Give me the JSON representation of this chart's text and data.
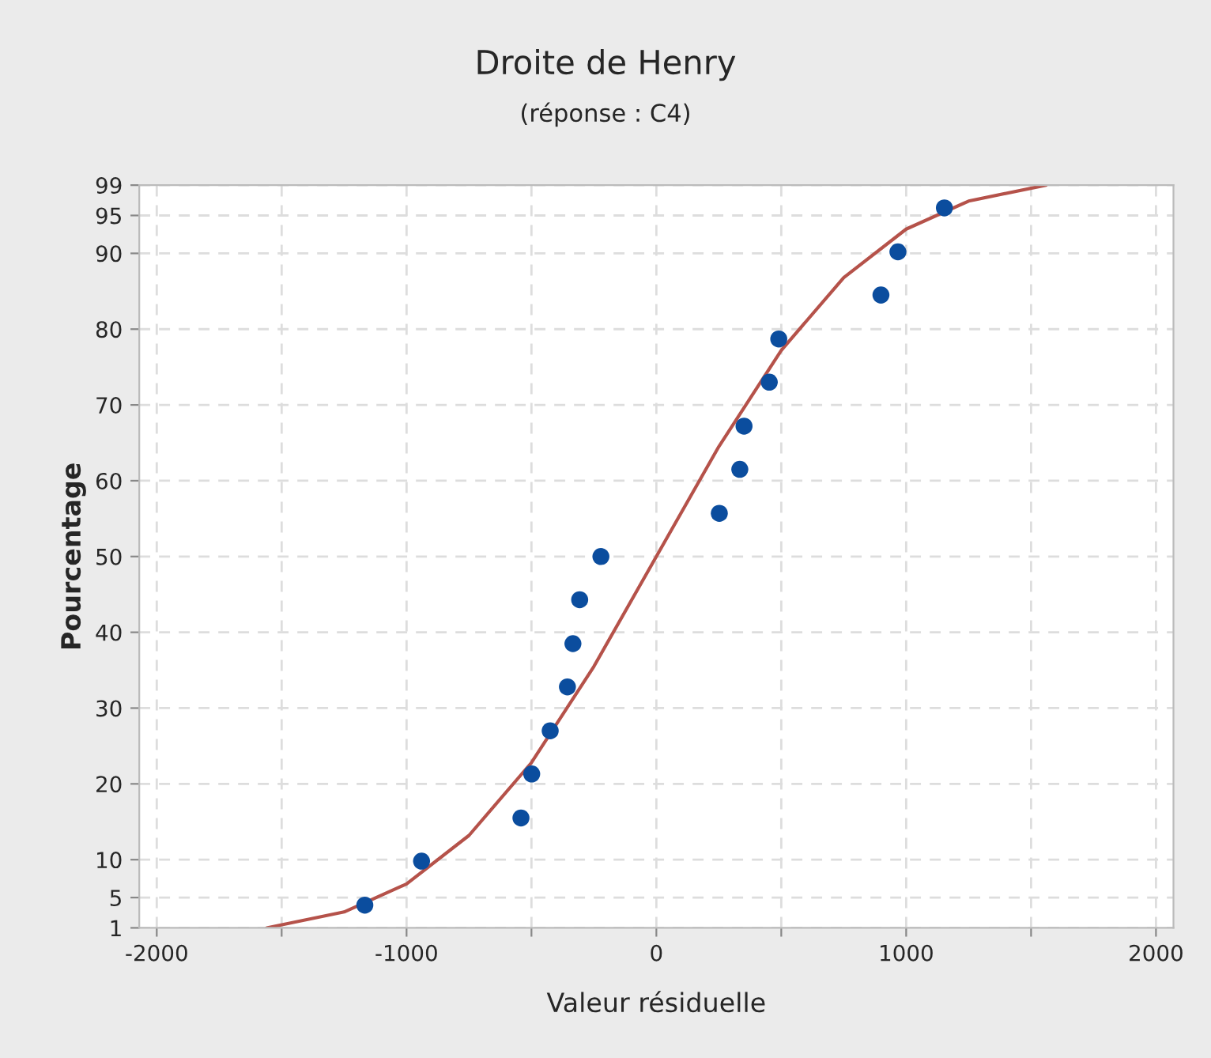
{
  "chart_data": {
    "type": "scatter",
    "title": "Droite de Henry",
    "subtitle": "(réponse : C4)",
    "xlabel": "Valeur résiduelle",
    "ylabel": "Pourcentage",
    "series": [
      {
        "type": "scatter",
        "marker": "circle",
        "color": "#0b4d9e",
        "x": [
          -1167,
          -940,
          -542,
          -499,
          -425,
          -356,
          -334,
          -307,
          -222,
          252,
          334,
          351,
          452,
          490,
          899,
          967,
          1153
        ],
        "values": [
          4.0,
          9.8,
          15.5,
          21.3,
          27.0,
          32.8,
          38.5,
          44.3,
          50.0,
          55.7,
          61.5,
          67.2,
          73.0,
          78.7,
          84.5,
          90.2,
          96.0
        ]
      },
      {
        "type": "line",
        "color": "#b5524a",
        "x": [
          -1560,
          -1250,
          -1000,
          -750,
          -500,
          -250,
          0,
          250,
          500,
          750,
          1000,
          1250,
          1560
        ],
        "values": [
          1,
          3.1,
          6.8,
          13.2,
          22.8,
          35.5,
          50,
          64.5,
          77.2,
          86.8,
          93.2,
          96.9,
          99
        ]
      }
    ],
    "xlim": [
      -2070,
      2070
    ],
    "xticks": [
      -2000,
      {
        "value": -1500,
        "label": null
      },
      -1000,
      {
        "value": -500,
        "label": null
      },
      0,
      {
        "value": 500,
        "label": null
      },
      1000,
      {
        "value": 1500,
        "label": null
      },
      2000
    ],
    "ylim": [
      1,
      99
    ],
    "yticks": [
      1,
      5,
      10,
      20,
      30,
      40,
      50,
      60,
      70,
      80,
      90,
      95,
      99
    ],
    "grid": true,
    "legend": false
  }
}
